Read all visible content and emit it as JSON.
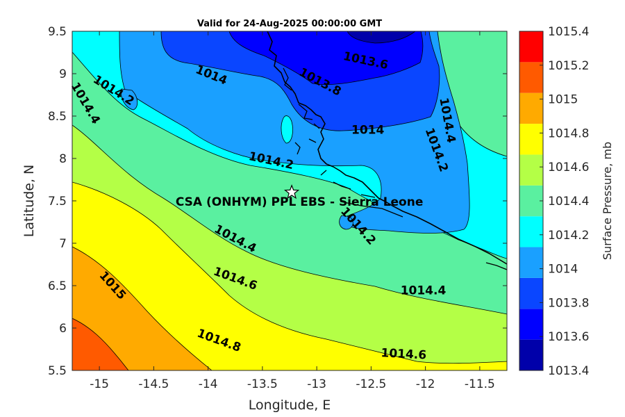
{
  "title": "Valid for 24-Aug-2025 00:00:00 GMT",
  "chart_data": {
    "type": "contour-map",
    "variable": "Surface Pressure",
    "xlabel": "Longitude, E",
    "ylabel": "Latitude, N",
    "xlim": [
      -15.25,
      -11.25
    ],
    "ylim": [
      5.5,
      9.5
    ],
    "x_ticks": [
      -15,
      -14.5,
      -14,
      -13.5,
      -13,
      -12.5,
      -12,
      -11.5
    ],
    "x_tick_labels": [
      "-15",
      "-14.5",
      "-14",
      "-13.5",
      "-13",
      "-12.5",
      "-12",
      "-11.5"
    ],
    "y_ticks": [
      5.5,
      6,
      6.5,
      7,
      7.5,
      8,
      8.5,
      9,
      9.5
    ],
    "y_tick_labels": [
      "5.5",
      "6",
      "6.5",
      "7",
      "7.5",
      "8",
      "8.5",
      "9",
      "9.5"
    ],
    "colorbar": {
      "label": "Surface Pressure, mb",
      "levels": [
        1013.4,
        1013.6,
        1013.8,
        1014,
        1014.2,
        1014.4,
        1014.6,
        1014.8,
        1015,
        1015.2,
        1015.4
      ],
      "level_labels": [
        "1013.4",
        "1013.6",
        "1013.8",
        "1014",
        "1014.2",
        "1014.4",
        "1014.6",
        "1014.8",
        "1015",
        "1015.2",
        "1015.4"
      ],
      "colors": [
        "#0000aa",
        "#0000ff",
        "#0a46ff",
        "#1aa0ff",
        "#00ffff",
        "#5af0a0",
        "#b4ff46",
        "#ffff00",
        "#ffaa00",
        "#ff5a00",
        "#ff0000"
      ]
    },
    "contour_labels": [
      {
        "text": "1013.6",
        "lon": -12.55,
        "lat": 9.15,
        "rot": 12
      },
      {
        "text": "1013.8",
        "lon": -12.97,
        "lat": 8.9,
        "rot": 28
      },
      {
        "text": "1014",
        "lon": -13.97,
        "lat": 8.98,
        "rot": 22
      },
      {
        "text": "1014",
        "lon": -12.53,
        "lat": 8.33,
        "rot": 0
      },
      {
        "text": "1014.2",
        "lon": -14.87,
        "lat": 8.8,
        "rot": 32
      },
      {
        "text": "1014.2",
        "lon": -13.42,
        "lat": 7.97,
        "rot": 12
      },
      {
        "text": "1014.2",
        "lon": -12.62,
        "lat": 7.2,
        "rot": 48
      },
      {
        "text": "1014.2",
        "lon": -11.9,
        "lat": 8.1,
        "rot": 70
      },
      {
        "text": "1014.4",
        "lon": -15.13,
        "lat": 8.65,
        "rot": 60
      },
      {
        "text": "1014.4",
        "lon": -11.8,
        "lat": 8.45,
        "rot": 80
      },
      {
        "text": "1014.4",
        "lon": -13.75,
        "lat": 7.05,
        "rot": 28
      },
      {
        "text": "1014.4",
        "lon": -12.02,
        "lat": 6.44,
        "rot": 0
      },
      {
        "text": "1014.6",
        "lon": -13.75,
        "lat": 6.58,
        "rot": 20
      },
      {
        "text": "1014.6",
        "lon": -12.2,
        "lat": 5.69,
        "rot": 3
      },
      {
        "text": "1014.8",
        "lon": -13.9,
        "lat": 5.85,
        "rot": 20
      },
      {
        "text": "1015",
        "lon": -14.88,
        "lat": 6.5,
        "rot": 48
      }
    ],
    "site": {
      "marker": "star-icon",
      "lon": -13.23,
      "lat": 7.6,
      "label": "CSA (ONHYM) PPL EBS - Sierra Leone"
    }
  }
}
